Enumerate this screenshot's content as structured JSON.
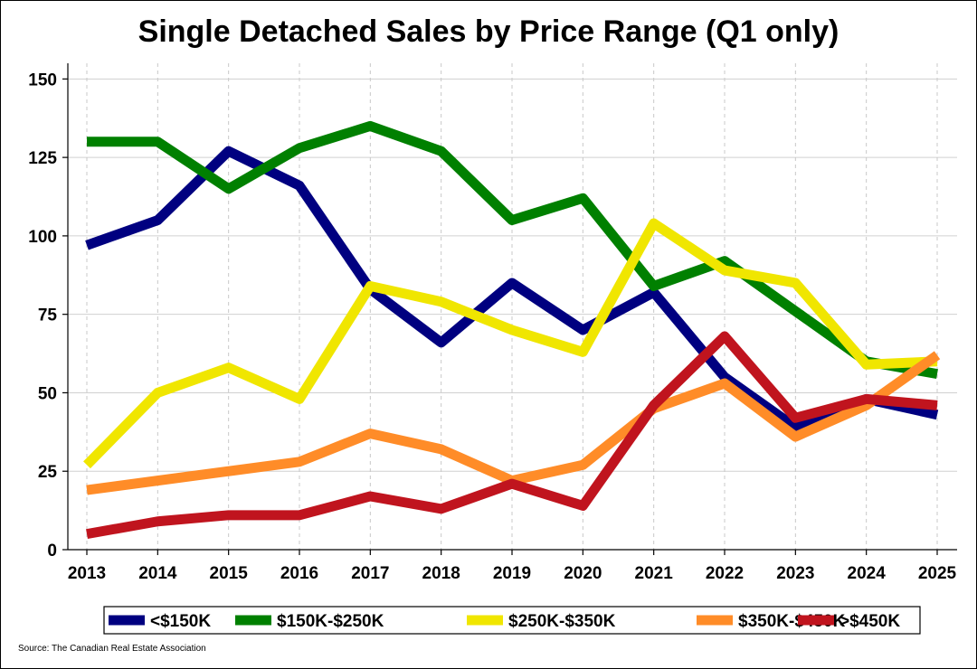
{
  "chart_data": {
    "type": "line",
    "title": "Single Detached Sales by Price Range (Q1 only)",
    "xlabel": "",
    "ylabel": "",
    "categories": [
      "2013",
      "2014",
      "2015",
      "2016",
      "2017",
      "2018",
      "2019",
      "2020",
      "2021",
      "2022",
      "2023",
      "2024",
      "2025"
    ],
    "ylim": [
      0,
      155
    ],
    "yticks": [
      0,
      25,
      50,
      75,
      100,
      125,
      150
    ],
    "grid": true,
    "legend_position": "bottom",
    "series": [
      {
        "name": "<$150K",
        "color": "#000080",
        "values": [
          97,
          105,
          127,
          116,
          83,
          66,
          85,
          70,
          82,
          55,
          39,
          48,
          43
        ]
      },
      {
        "name": "$150K-$250K",
        "color": "#008000",
        "values": [
          130,
          130,
          115,
          128,
          135,
          127,
          105,
          112,
          84,
          92,
          76,
          60,
          56
        ]
      },
      {
        "name": "$250K-$350K",
        "color": "#F0E600",
        "values": [
          27,
          50,
          58,
          48,
          84,
          79,
          70,
          63,
          104,
          89,
          85,
          59,
          60
        ]
      },
      {
        "name": "$350K-$450K",
        "color": "#FF8C28",
        "values": [
          19,
          22,
          25,
          28,
          37,
          32,
          22,
          27,
          45,
          53,
          36,
          46,
          62
        ]
      },
      {
        "name": ">$450K",
        "color": "#C0141E",
        "values": [
          5,
          9,
          11,
          11,
          17,
          13,
          21,
          14,
          46,
          68,
          42,
          48,
          46
        ]
      }
    ],
    "source": "Source: The Canadian Real Estate Association"
  }
}
